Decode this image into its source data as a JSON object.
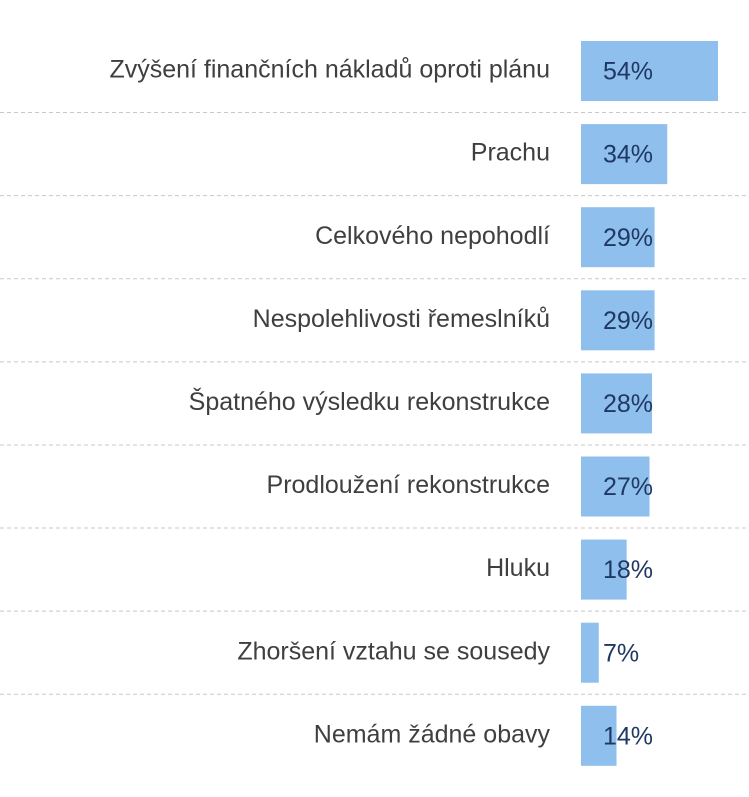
{
  "chart_data": {
    "type": "bar",
    "orientation": "horizontal",
    "categories": [
      "Zvýšení finančních nákladů oproti plánu",
      "Prachu",
      "Celkového nepohodlí",
      "Nespolehlivosti řemeslníků",
      "Špatného výsledku rekonstrukce",
      "Prodloužení rekonstrukce",
      "Hluku",
      "Zhoršení vztahu se sousedy",
      "Nemám žádné obavy"
    ],
    "values": [
      54,
      34,
      29,
      29,
      28,
      27,
      18,
      7,
      14
    ],
    "data_labels": [
      "54%",
      "34%",
      "29%",
      "29%",
      "28%",
      "27%",
      "18%",
      "7%",
      "14%"
    ],
    "unit": "%",
    "xlim": [
      0,
      54
    ],
    "grid": false,
    "legend": "none",
    "colors": {
      "bar": "#8fbfec",
      "category_text": "#3f3f3f",
      "value_text": "#1f3864",
      "separator": "#c8c8c8"
    }
  }
}
